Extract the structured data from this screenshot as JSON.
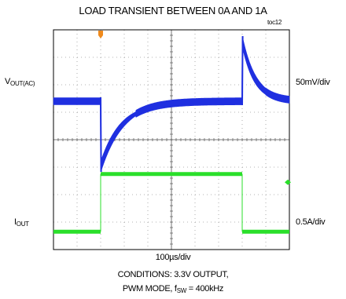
{
  "chart_data": {
    "type": "line",
    "title": "LOAD TRANSIENT BETWEEN 0A AND 1A",
    "figure_id": "toc12",
    "time_per_division": "100µs/div",
    "x_divisions": 10,
    "y_divisions": 8,
    "grid": true,
    "series": [
      {
        "name": "VOUT(AC)",
        "label_main": "V",
        "label_sub": "OUT(AC)",
        "scale": "50mV/div",
        "color": "#1f2fe0",
        "description_points": {
          "t_div": [
            0,
            2.0,
            2.05,
            2.3,
            3,
            4,
            6,
            8.0,
            8.05,
            8.4,
            9,
            10
          ],
          "v_div_rel": [
            0,
            0,
            -2.4,
            -1.2,
            -0.55,
            -0.25,
            -0.05,
            0,
            2.2,
            1.1,
            0.45,
            0.2
          ]
        }
      },
      {
        "name": "IOUT",
        "label_main": "I",
        "label_sub": "OUT",
        "scale": "0.5A/div",
        "color": "#2adf2a",
        "description_points": {
          "t_div": [
            0,
            2.0,
            2.0,
            8.0,
            8.0,
            10
          ],
          "i_amps": [
            0,
            0,
            1,
            1,
            0,
            0
          ]
        }
      }
    ],
    "conditions_line1": "CONDITIONS: 3.3V OUTPUT,",
    "conditions_line2_prefix": "PWM MODE, f",
    "conditions_line2_sub": "SW",
    "conditions_line2_suffix": " = 400kHz"
  }
}
